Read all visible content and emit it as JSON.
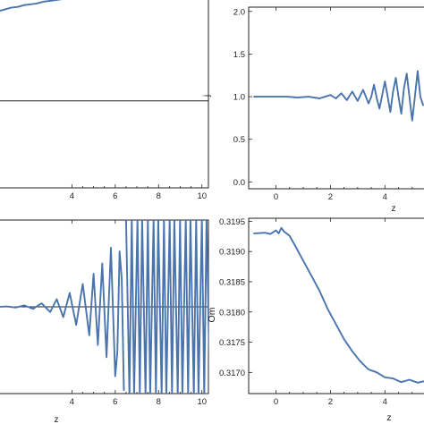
{
  "colors": {
    "series": "#4a74ad",
    "axis": "#222222",
    "background": "#ffffff"
  },
  "chart_data": [
    {
      "type": "line",
      "panel": "top-left",
      "xlabel": "",
      "ylabel": "",
      "xlim": [
        0.6,
        10.3
      ],
      "ylim": [
        0,
        2.2
      ],
      "xticks": [
        4,
        6,
        8,
        10
      ],
      "yticks": [],
      "reference_line_y": 1.0,
      "series": [
        {
          "x": [
            0.6,
            0.9,
            1.2,
            1.5,
            1.8,
            2.1,
            2.4,
            2.7,
            3.0,
            3.3,
            3.6,
            3.9,
            4.2,
            4.5,
            4.8,
            5.1,
            5.4,
            5.7,
            6.0,
            6.3,
            6.6,
            6.9,
            7.2,
            7.5,
            7.8,
            8.1,
            8.4,
            8.7,
            9.0,
            9.3,
            9.6,
            9.9
          ],
          "y": [
            2.03,
            2.05,
            2.07,
            2.08,
            2.1,
            2.11,
            2.12,
            2.14,
            2.15,
            2.16,
            2.17,
            2.18,
            2.19,
            2.2,
            2.21,
            2.21,
            2.22,
            2.23,
            2.23,
            2.23,
            2.24,
            2.24,
            2.24,
            2.25,
            2.24,
            2.25,
            2.24,
            2.25,
            2.24,
            2.25,
            2.24,
            2.24
          ]
        }
      ]
    },
    {
      "type": "line",
      "panel": "top-right",
      "xlabel": "z",
      "ylabel": "j",
      "xlim": [
        -1.0,
        5.5
      ],
      "ylim": [
        -0.08,
        2.05
      ],
      "xticks": [
        0,
        2,
        4
      ],
      "yticks": [
        0.0,
        0.5,
        1.0,
        1.5,
        2.0
      ],
      "xticklabels": [
        "0",
        "2",
        "4"
      ],
      "yticklabels": [
        "0.0",
        "0.5",
        "1.0",
        "1.5",
        "2.0"
      ],
      "series": [
        {
          "x": [
            -0.8,
            -0.4,
            0.0,
            0.4,
            0.8,
            1.2,
            1.6,
            2.0,
            2.2,
            2.4,
            2.6,
            2.8,
            3.0,
            3.2,
            3.4,
            3.5,
            3.6,
            3.7,
            3.8,
            3.9,
            4.0,
            4.1,
            4.2,
            4.3,
            4.4,
            4.5,
            4.6,
            4.7,
            4.8,
            4.9,
            5.0,
            5.1,
            5.2,
            5.3,
            5.4
          ],
          "y": [
            1.0,
            1.0,
            1.0,
            1.0,
            0.99,
            1.0,
            0.98,
            1.02,
            0.98,
            1.04,
            0.96,
            1.06,
            0.95,
            1.08,
            0.92,
            1.0,
            1.14,
            0.98,
            0.86,
            1.02,
            1.18,
            1.0,
            0.82,
            1.06,
            1.22,
            1.0,
            0.8,
            1.1,
            1.27,
            1.0,
            0.72,
            1.0,
            1.3,
            1.0,
            0.9
          ]
        }
      ]
    },
    {
      "type": "line",
      "panel": "bottom-left",
      "xlabel": "z",
      "ylabel": "",
      "xlim": [
        0.6,
        10.3
      ],
      "ylim": [
        -2.5,
        2.5
      ],
      "xticks": [
        4,
        6,
        8,
        10
      ],
      "xticklabels": [
        "4",
        "6",
        "8",
        "10"
      ],
      "yticks": [],
      "reference_line_y": 0.0,
      "oscillation_clip_start_x": 6.5,
      "series": [
        {
          "x": [
            0.6,
            1.0,
            1.4,
            1.8,
            2.2,
            2.6,
            3.0,
            3.3,
            3.6,
            3.9,
            4.2,
            4.5,
            4.8,
            5.0,
            5.2,
            5.4,
            5.6,
            5.8,
            6.0,
            6.1,
            6.2,
            6.3,
            6.4
          ],
          "y": [
            0.0,
            0.01,
            -0.02,
            0.04,
            -0.06,
            0.1,
            -0.15,
            0.22,
            -0.3,
            0.4,
            -0.52,
            0.66,
            -0.82,
            0.95,
            -1.1,
            1.25,
            -1.45,
            1.7,
            -2.0,
            -1.3,
            1.6,
            0.8,
            -2.4
          ]
        }
      ]
    },
    {
      "type": "line",
      "panel": "bottom-right",
      "xlabel": "z",
      "ylabel": "Om",
      "xlim": [
        -1.0,
        5.5
      ],
      "ylim": [
        0.31665,
        0.31955
      ],
      "xticks": [
        0,
        2,
        4
      ],
      "yticks": [
        0.317,
        0.3175,
        0.318,
        0.3185,
        0.319,
        0.3195
      ],
      "xticklabels": [
        "0",
        "2",
        "4"
      ],
      "yticklabels": [
        "0.3170",
        "0.3175",
        "0.3180",
        "0.3185",
        "0.3190",
        "0.3195"
      ],
      "series": [
        {
          "x": [
            -0.8,
            -0.4,
            -0.2,
            0.0,
            0.1,
            0.2,
            0.3,
            0.5,
            0.7,
            1.0,
            1.3,
            1.6,
            1.9,
            2.2,
            2.5,
            2.8,
            3.1,
            3.4,
            3.7,
            4.0,
            4.3,
            4.6,
            4.9,
            5.2,
            5.5
          ],
          "y": [
            0.3193,
            0.31931,
            0.31929,
            0.31935,
            0.3193,
            0.31939,
            0.31933,
            0.31926,
            0.3191,
            0.31885,
            0.3186,
            0.31835,
            0.31805,
            0.3178,
            0.31755,
            0.31735,
            0.31718,
            0.31705,
            0.317,
            0.31692,
            0.3169,
            0.31684,
            0.31688,
            0.31683,
            0.31686
          ]
        }
      ]
    }
  ]
}
